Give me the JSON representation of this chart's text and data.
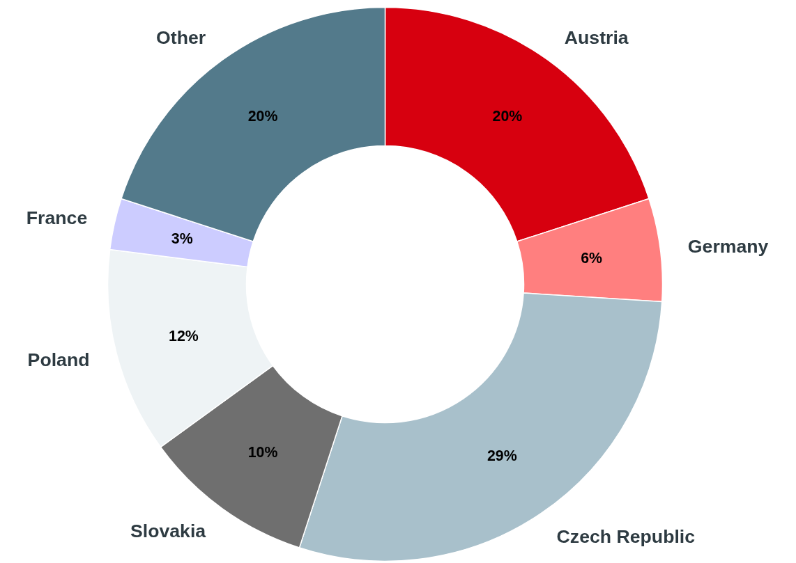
{
  "chart_data": {
    "type": "donut",
    "categories": [
      "Austria",
      "Germany",
      "Czech Republic",
      "Slovakia",
      "Poland",
      "France",
      "Other"
    ],
    "values": [
      20,
      6,
      29,
      10,
      12,
      3,
      20
    ],
    "colors": [
      "#d7000f",
      "#ff7f7f",
      "#a8c0cb",
      "#6f6f6f",
      "#eef3f5",
      "#ccccff",
      "#537a8b"
    ],
    "value_labels": [
      "20%",
      "6%",
      "29%",
      "10%",
      "12%",
      "3%",
      "20%"
    ]
  }
}
